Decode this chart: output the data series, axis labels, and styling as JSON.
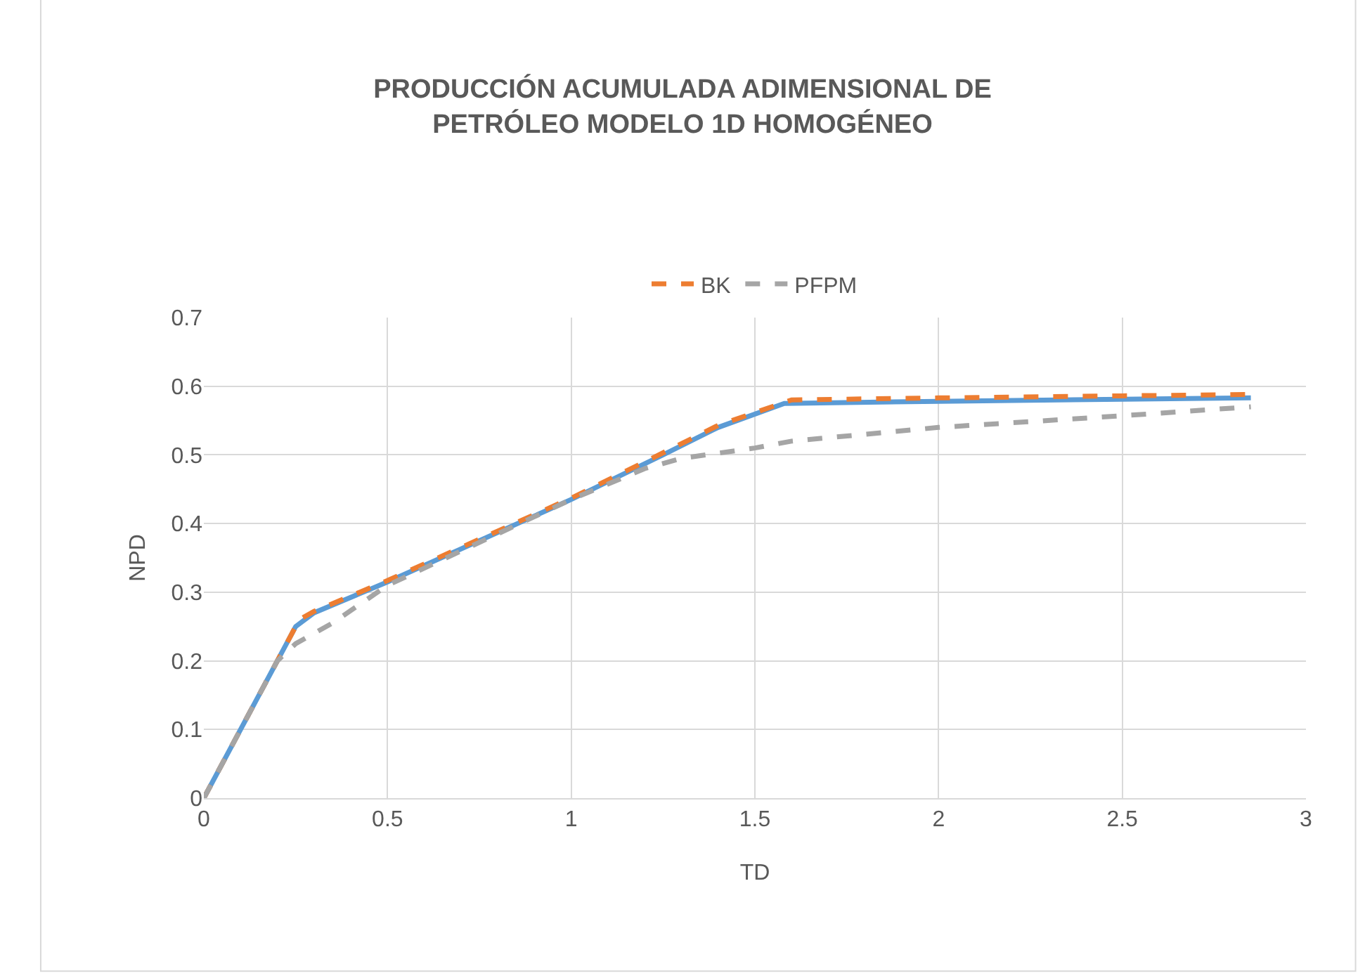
{
  "chart_data": {
    "type": "line",
    "title": "PRODUCCIÓN ACUMULADA ADIMENSIONAL DE PETRÓLEO MODELO 1D HOMOGÉNEO",
    "xlabel": "TD",
    "ylabel": "NPD",
    "xlim": [
      0,
      3
    ],
    "xticks": [
      0,
      0.5,
      1,
      1.5,
      2,
      2.5,
      3
    ],
    "ylim": [
      0,
      0.7
    ],
    "yticks": [
      0,
      0.1,
      0.2,
      0.3,
      0.4,
      0.5,
      0.6,
      0.7
    ],
    "grid": true,
    "legend": "top",
    "marker": "none",
    "series": [
      {
        "color": "#5b9bd5",
        "line_style": "solid",
        "x": [
          0,
          0.2,
          0.25,
          0.3,
          0.5,
          1,
          1.25,
          1.4,
          1.58,
          2,
          2.5,
          2.85
        ],
        "values": [
          0,
          0.2,
          0.25,
          0.27,
          0.315,
          0.435,
          0.5,
          0.54,
          0.575,
          0.578,
          0.581,
          0.583
        ]
      },
      {
        "name": "BK",
        "color": "#ed7d31",
        "line_style": "dashed",
        "x": [
          0,
          0.2,
          0.24,
          0.26,
          0.3,
          0.5,
          1,
          1.25,
          1.4,
          1.6,
          2,
          2.5,
          2.85
        ],
        "values": [
          0,
          0.2,
          0.24,
          0.26,
          0.272,
          0.317,
          0.437,
          0.503,
          0.543,
          0.58,
          0.583,
          0.586,
          0.588
        ]
      },
      {
        "name": "PFPM",
        "color": "#a5a5a5",
        "line_style": "dashed",
        "x": [
          0,
          0.2,
          0.25,
          0.35,
          0.5,
          1,
          1.2,
          1.3,
          1.5,
          1.6,
          2,
          2.5,
          2.85
        ],
        "values": [
          0,
          0.2,
          0.225,
          0.255,
          0.31,
          0.435,
          0.48,
          0.495,
          0.51,
          0.52,
          0.54,
          0.557,
          0.57
        ]
      }
    ]
  }
}
